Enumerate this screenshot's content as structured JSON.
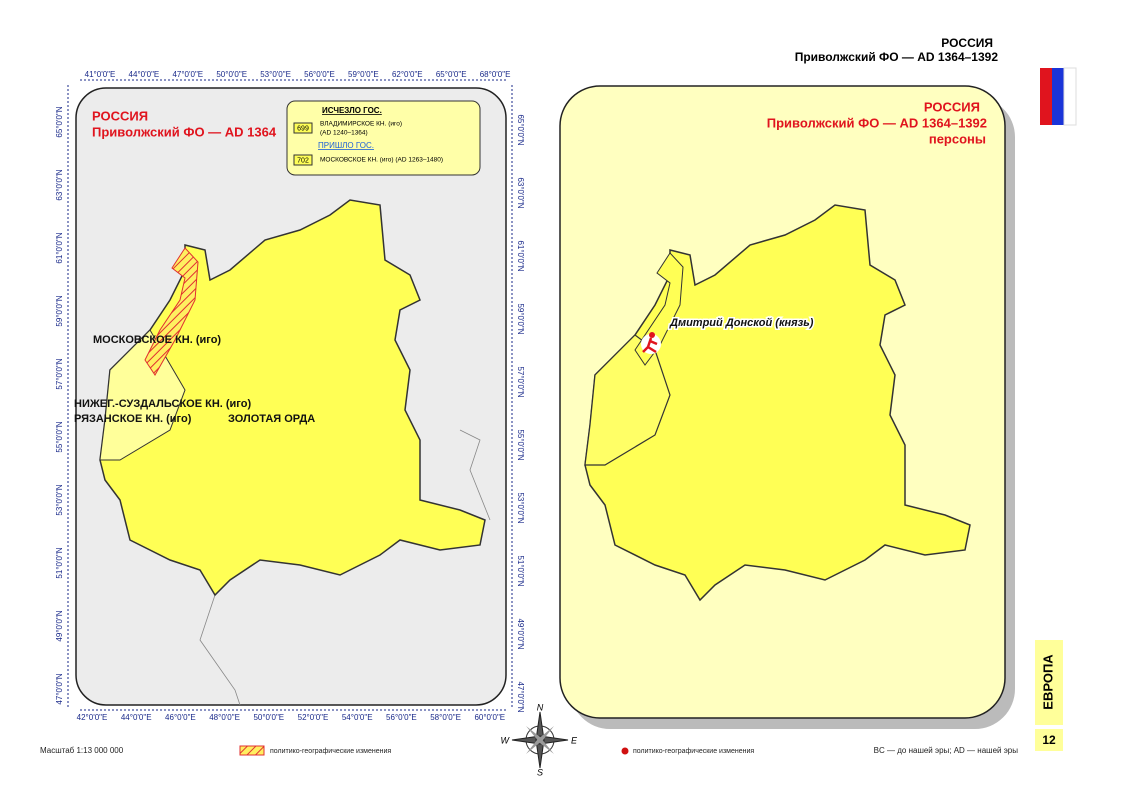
{
  "header": {
    "title": "РОССИЯ",
    "subtitle": "Приволжский ФО — AD 1364–1392"
  },
  "left_map": {
    "title": "РОССИЯ",
    "subtitle": "Приволжский ФО — AD 1364",
    "legend": {
      "gone_heading": "ИСЧЕЗЛО ГОС.",
      "gone_code": "699",
      "gone_name": "ВЛАДИМИРСКОЕ КН. (иго)",
      "gone_dates": "(AD 1240–1364)",
      "came_heading": "ПРИШЛО ГОС.",
      "came_code": "702",
      "came_name": "МОСКОВСКОЕ КН. (иго) (AD 1263–1480)"
    },
    "labels": [
      "МОСКОВСКОЕ КН. (иго)",
      "НИЖЕГ.-СУЗДАЛЬСКОЕ КН. (иго)",
      "РЯЗАНСКОЕ КН. (иго)",
      "ЗОЛОТАЯ ОРДА"
    ],
    "top_ticks": [
      "41°0'0\"E",
      "44°0'0\"E",
      "47°0'0\"E",
      "50°0'0\"E",
      "53°0'0\"E",
      "56°0'0\"E",
      "59°0'0\"E",
      "62°0'0\"E",
      "65°0'0\"E",
      "68°0'0\"E"
    ],
    "bottom_ticks": [
      "42°0'0\"E",
      "44°0'0\"E",
      "46°0'0\"E",
      "48°0'0\"E",
      "50°0'0\"E",
      "52°0'0\"E",
      "54°0'0\"E",
      "56°0'0\"E",
      "58°0'0\"E",
      "60°0'0\"E"
    ],
    "left_ticks": [
      "65°0'0\"N",
      "63°0'0\"N",
      "61°0'0\"N",
      "59°0'0\"N",
      "57°0'0\"N",
      "55°0'0\"N",
      "53°0'0\"N",
      "51°0'0\"N",
      "49°0'0\"N",
      "47°0'0\"N"
    ],
    "right_ticks": [
      "65°0'0\"N",
      "63°0'0\"N",
      "61°0'0\"N",
      "59°0'0\"N",
      "57°0'0\"N",
      "55°0'0\"N",
      "53°0'0\"N",
      "51°0'0\"N",
      "49°0'0\"N",
      "47°0'0\"N"
    ]
  },
  "right_map": {
    "title": "РОССИЯ",
    "subtitle": "Приволжский ФО — AD 1364–1392",
    "note": "персоны",
    "person": "Дмитрий Донской (князь)"
  },
  "compass": {
    "n": "N",
    "e": "E",
    "s": "S",
    "w": "W"
  },
  "footer": {
    "scale": "Масштаб 1:13 000 000",
    "legend_left": "политико-географические изменения",
    "legend_right": "политико-географические изменения",
    "era": "BC — до нашей эры; AD — нашей эры",
    "region": "ЕВРОПА",
    "page": "12"
  }
}
